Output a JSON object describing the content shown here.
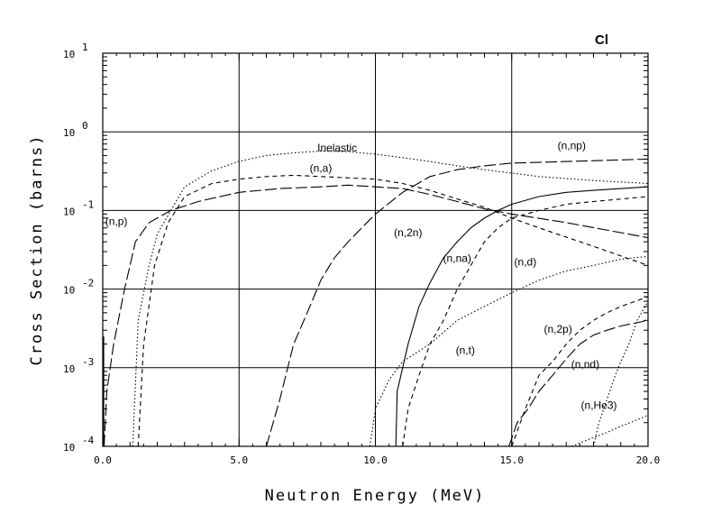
{
  "chart_data": {
    "type": "line",
    "element": "Cl",
    "xlabel": "Neutron Energy (MeV)",
    "ylabel": "Cross Section (barns)",
    "xscale": "linear",
    "yscale": "log",
    "xlim": [
      0,
      20
    ],
    "ylim": [
      0.0001,
      10
    ],
    "x_ticks": [
      "0.0",
      "5.0",
      "10.0",
      "15.0",
      "20.0"
    ],
    "y_ticks": [
      {
        "base": "10",
        "exp": "-4"
      },
      {
        "base": "10",
        "exp": "-3"
      },
      {
        "base": "10",
        "exp": "-2"
      },
      {
        "base": "10",
        "exp": "-1"
      },
      {
        "base": "10",
        "exp": "0"
      },
      {
        "base": "10",
        "exp": "1"
      }
    ],
    "grid": true,
    "series": [
      {
        "name": "Inelastic",
        "dash": "dotted",
        "points": [
          [
            1.1,
            0.0001
          ],
          [
            1.3,
            0.004
          ],
          [
            1.7,
            0.02
          ],
          [
            2.0,
            0.05
          ],
          [
            2.5,
            0.1
          ],
          [
            3.0,
            0.2
          ],
          [
            4.0,
            0.32
          ],
          [
            5.0,
            0.42
          ],
          [
            6.0,
            0.5
          ],
          [
            7.0,
            0.54
          ],
          [
            8.0,
            0.57
          ],
          [
            9.0,
            0.56
          ],
          [
            10.0,
            0.52
          ],
          [
            11.0,
            0.47
          ],
          [
            12.0,
            0.42
          ],
          [
            13.0,
            0.37
          ],
          [
            14.0,
            0.33
          ],
          [
            16.0,
            0.27
          ],
          [
            18.0,
            0.24
          ],
          [
            20.0,
            0.22
          ]
        ]
      },
      {
        "name": "(n,a)",
        "dash": "short-dash",
        "points": [
          [
            1.3,
            0.0001
          ],
          [
            1.5,
            0.002
          ],
          [
            1.9,
            0.02
          ],
          [
            2.4,
            0.07
          ],
          [
            3.0,
            0.15
          ],
          [
            4.0,
            0.22
          ],
          [
            5.0,
            0.25
          ],
          [
            6.0,
            0.27
          ],
          [
            7.0,
            0.28
          ],
          [
            8.0,
            0.27
          ],
          [
            9.0,
            0.26
          ],
          [
            10.0,
            0.25
          ],
          [
            11.0,
            0.22
          ],
          [
            12.0,
            0.18
          ],
          [
            13.0,
            0.14
          ],
          [
            14.0,
            0.11
          ],
          [
            15.0,
            0.08
          ],
          [
            16.0,
            0.06
          ],
          [
            18.0,
            0.035
          ],
          [
            20.0,
            0.02
          ]
        ]
      },
      {
        "name": "(n,p)",
        "dash": "long-dash",
        "points": [
          [
            0.05,
            0.0001
          ],
          [
            0.15,
            0.0005
          ],
          [
            0.4,
            0.002
          ],
          [
            0.8,
            0.01
          ],
          [
            1.2,
            0.04
          ],
          [
            1.7,
            0.07
          ],
          [
            2.5,
            0.1
          ],
          [
            3.5,
            0.13
          ],
          [
            5.0,
            0.17
          ],
          [
            6.5,
            0.19
          ],
          [
            8.0,
            0.2
          ],
          [
            9.0,
            0.21
          ],
          [
            10.0,
            0.2
          ],
          [
            11.0,
            0.19
          ],
          [
            12.0,
            0.16
          ],
          [
            13.0,
            0.13
          ],
          [
            14.0,
            0.105
          ],
          [
            15.0,
            0.09
          ],
          [
            17.0,
            0.07
          ],
          [
            20.0,
            0.045
          ]
        ]
      },
      {
        "name": "(n,np)",
        "dash": "long-dash",
        "points": [
          [
            6.0,
            0.0001
          ],
          [
            6.5,
            0.0004
          ],
          [
            7.0,
            0.002
          ],
          [
            7.5,
            0.005
          ],
          [
            8.0,
            0.013
          ],
          [
            8.5,
            0.025
          ],
          [
            9.0,
            0.04
          ],
          [
            9.5,
            0.06
          ],
          [
            10.0,
            0.09
          ],
          [
            11.0,
            0.17
          ],
          [
            12.0,
            0.27
          ],
          [
            13.0,
            0.33
          ],
          [
            14.0,
            0.37
          ],
          [
            15.0,
            0.4
          ],
          [
            17.0,
            0.42
          ],
          [
            20.0,
            0.45
          ]
        ]
      },
      {
        "name": "(n,2n)",
        "dash": "solid",
        "points": [
          [
            10.75,
            0.0001
          ],
          [
            10.8,
            0.0005
          ],
          [
            11.2,
            0.002
          ],
          [
            11.6,
            0.006
          ],
          [
            12.0,
            0.012
          ],
          [
            12.5,
            0.025
          ],
          [
            13.0,
            0.04
          ],
          [
            13.5,
            0.06
          ],
          [
            14.0,
            0.08
          ],
          [
            14.5,
            0.1
          ],
          [
            15.0,
            0.12
          ],
          [
            16.0,
            0.15
          ],
          [
            17.0,
            0.17
          ],
          [
            18.0,
            0.18
          ],
          [
            20.0,
            0.2
          ]
        ]
      },
      {
        "name": "(n,na)",
        "dash": "short-dash",
        "points": [
          [
            11.0,
            0.0001
          ],
          [
            11.2,
            0.0003
          ],
          [
            11.6,
            0.0008
          ],
          [
            12.0,
            0.002
          ],
          [
            12.5,
            0.004
          ],
          [
            13.0,
            0.01
          ],
          [
            13.5,
            0.02
          ],
          [
            14.0,
            0.04
          ],
          [
            14.5,
            0.06
          ],
          [
            15.0,
            0.08
          ],
          [
            16.0,
            0.1
          ],
          [
            17.0,
            0.12
          ],
          [
            18.0,
            0.13
          ],
          [
            20.0,
            0.15
          ]
        ]
      },
      {
        "name": "(n,d)",
        "dash": "dotted",
        "points": [
          [
            9.8,
            0.0001
          ],
          [
            10.0,
            0.0003
          ],
          [
            10.5,
            0.0007
          ],
          [
            11.0,
            0.0012
          ],
          [
            12.0,
            0.002
          ],
          [
            13.0,
            0.004
          ],
          [
            14.0,
            0.006
          ],
          [
            15.0,
            0.009
          ],
          [
            16.0,
            0.013
          ],
          [
            17.0,
            0.017
          ],
          [
            18.0,
            0.02
          ],
          [
            19.0,
            0.024
          ],
          [
            20.0,
            0.026
          ]
        ]
      },
      {
        "name": "(n,t)",
        "dash": "short-dash",
        "points": [
          [
            15.0,
            0.0001
          ],
          [
            15.5,
            0.0003
          ],
          [
            16.0,
            0.0008
          ],
          [
            16.5,
            0.0012
          ],
          [
            17.0,
            0.002
          ],
          [
            17.5,
            0.003
          ],
          [
            18.0,
            0.004
          ],
          [
            18.5,
            0.005
          ],
          [
            19.0,
            0.006
          ],
          [
            20.0,
            0.008
          ]
        ]
      },
      {
        "name": "(n,2p)",
        "dash": "long-dash",
        "points": [
          [
            14.9,
            0.0001
          ],
          [
            15.2,
            0.0002
          ],
          [
            15.6,
            0.0003
          ],
          [
            16.0,
            0.0005
          ],
          [
            16.5,
            0.0008
          ],
          [
            17.0,
            0.0013
          ],
          [
            17.5,
            0.002
          ],
          [
            18.0,
            0.0026
          ],
          [
            18.5,
            0.003
          ],
          [
            19.0,
            0.0034
          ],
          [
            20.0,
            0.004
          ]
        ]
      },
      {
        "name": "(n,nd)",
        "dash": "dotted",
        "points": [
          [
            18.0,
            0.0001
          ],
          [
            18.2,
            0.0002
          ],
          [
            18.5,
            0.0004
          ],
          [
            18.8,
            0.0008
          ],
          [
            19.0,
            0.0012
          ],
          [
            19.3,
            0.002
          ],
          [
            19.6,
            0.004
          ],
          [
            20.0,
            0.007
          ]
        ]
      },
      {
        "name": "(n,He3)",
        "dash": "dotted",
        "points": [
          [
            17.2,
            0.0001
          ],
          [
            17.5,
            0.00011
          ],
          [
            18.0,
            0.00013
          ],
          [
            18.5,
            0.00015
          ],
          [
            19.0,
            0.00018
          ],
          [
            19.5,
            0.00021
          ],
          [
            20.0,
            0.00025
          ]
        ]
      }
    ],
    "labels": [
      {
        "text": "Inelastic",
        "x": 8.6,
        "y": 0.56
      },
      {
        "text": "(n,a)",
        "x": 8.0,
        "y": 0.31
      },
      {
        "text": "(n,p)",
        "x": 0.5,
        "y": 0.065
      },
      {
        "text": "(n,np)",
        "x": 17.2,
        "y": 0.6
      },
      {
        "text": "(n,2n)",
        "x": 11.2,
        "y": 0.047
      },
      {
        "text": "(n,na)",
        "x": 13.0,
        "y": 0.022
      },
      {
        "text": "(n,d)",
        "x": 15.5,
        "y": 0.02
      },
      {
        "text": "(n,t)",
        "x": 13.3,
        "y": 0.0015
      },
      {
        "text": "(n,2p)",
        "x": 16.7,
        "y": 0.0028
      },
      {
        "text": "(n,nd)",
        "x": 17.7,
        "y": 0.001
      },
      {
        "text": "(n,He3)",
        "x": 18.2,
        "y": 0.0003
      }
    ]
  }
}
